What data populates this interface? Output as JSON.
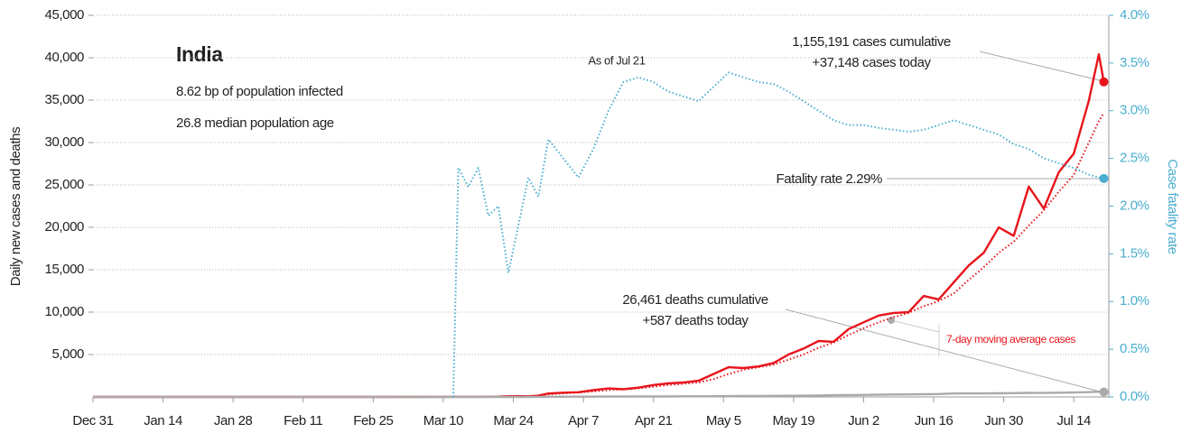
{
  "chart_data": {
    "type": "line",
    "title": "India",
    "subtitle": [
      "8.62 bp of population infected",
      "26.8 median population age"
    ],
    "ylabel": "Daily new cases and deaths",
    "y2label": "Case fatality rate",
    "annotations": {
      "as_of": "As of Jul 21",
      "cases_cumulative": "1,155,191 cases cumulative",
      "cases_today": "+37,148 cases today",
      "fatality": "Fatality rate 2.29%",
      "deaths_cumulative": "26,461 deaths cumulative",
      "deaths_today": "+587 deaths today",
      "moving_average": "7-day moving average cases"
    },
    "x": [
      0,
      30,
      60,
      71,
      72,
      73,
      75,
      77,
      79,
      81,
      83,
      85,
      87,
      89,
      91,
      94,
      97,
      100,
      103,
      106,
      109,
      112,
      115,
      118,
      121,
      124,
      127,
      130,
      133,
      136,
      139,
      142,
      145,
      148,
      151,
      154,
      157,
      160,
      163,
      166,
      169,
      172,
      175,
      178,
      181,
      184,
      187,
      190,
      193,
      196,
      199,
      201,
      202
    ],
    "xlim": [
      0,
      203
    ],
    "xticks": [
      {
        "value": 0,
        "label": "Dec 31"
      },
      {
        "value": 14,
        "label": "Jan 14"
      },
      {
        "value": 28,
        "label": "Jan 28"
      },
      {
        "value": 42,
        "label": "Feb 11"
      },
      {
        "value": 56,
        "label": "Feb 25"
      },
      {
        "value": 70,
        "label": "Mar 10"
      },
      {
        "value": 84,
        "label": "Mar 24"
      },
      {
        "value": 98,
        "label": "Apr 7"
      },
      {
        "value": 112,
        "label": "Apr 21"
      },
      {
        "value": 126,
        "label": "May 5"
      },
      {
        "value": 140,
        "label": "May 19"
      },
      {
        "value": 154,
        "label": "Jun 2"
      },
      {
        "value": 168,
        "label": "Jun 16"
      },
      {
        "value": 182,
        "label": "Jun 30"
      },
      {
        "value": 196,
        "label": "Jul 14"
      }
    ],
    "ylim": [
      0,
      45000
    ],
    "yticks": [
      {
        "value": 5000,
        "label": "5,000"
      },
      {
        "value": 10000,
        "label": "10,000"
      },
      {
        "value": 15000,
        "label": "15,000"
      },
      {
        "value": 20000,
        "label": "20,000"
      },
      {
        "value": 25000,
        "label": "25,000"
      },
      {
        "value": 30000,
        "label": "30,000"
      },
      {
        "value": 35000,
        "label": "35,000"
      },
      {
        "value": 40000,
        "label": "40,000"
      },
      {
        "value": 45000,
        "label": "45,000"
      }
    ],
    "y2lim": [
      0,
      4
    ],
    "y2ticks": [
      {
        "value": 0,
        "label": "0.0%"
      },
      {
        "value": 0.5,
        "label": "0.5%"
      },
      {
        "value": 1,
        "label": "1.0%"
      },
      {
        "value": 1.5,
        "label": "1.5%"
      },
      {
        "value": 2,
        "label": "2.0%"
      },
      {
        "value": 2.5,
        "label": "2.5%"
      },
      {
        "value": 3,
        "label": "3.0%"
      },
      {
        "value": 3.5,
        "label": "3.5%"
      },
      {
        "value": 4,
        "label": "4.0%"
      }
    ],
    "grid": true,
    "series": [
      {
        "name": "Daily new cases",
        "color": "#e8141b",
        "style": "solid",
        "values": [
          0,
          0,
          0,
          10,
          20,
          10,
          15,
          10,
          20,
          30,
          80,
          100,
          70,
          150,
          400,
          500,
          550,
          800,
          1000,
          900,
          1100,
          1400,
          1600,
          1700,
          1900,
          2700,
          3500,
          3400,
          3600,
          4000,
          5000,
          5700,
          6600,
          6500,
          8000,
          8800,
          9600,
          9900,
          10000,
          11900,
          11500,
          13500,
          15500,
          17000,
          20000,
          19000,
          24800,
          22200,
          26500,
          28700,
          34900,
          40400,
          37148
        ]
      },
      {
        "name": "7-day moving average cases",
        "color": "#e8141b",
        "style": "dotted",
        "values": [
          0,
          0,
          0,
          5,
          10,
          10,
          12,
          14,
          16,
          20,
          40,
          60,
          80,
          110,
          300,
          430,
          520,
          650,
          800,
          900,
          1000,
          1200,
          1400,
          1550,
          1700,
          2100,
          2700,
          3200,
          3500,
          3800,
          4400,
          5000,
          5800,
          6400,
          7300,
          8100,
          8800,
          9400,
          9900,
          10700,
          11300,
          12200,
          13800,
          15300,
          17000,
          18300,
          20200,
          22000,
          24200,
          26200,
          30000,
          32500,
          33500
        ]
      },
      {
        "name": "Daily new deaths",
        "color": "#aaaaaa",
        "style": "solid",
        "values": [
          0,
          0,
          0,
          0,
          0,
          0,
          0,
          0,
          0,
          1,
          3,
          4,
          5,
          10,
          20,
          25,
          30,
          35,
          40,
          45,
          50,
          50,
          55,
          70,
          75,
          90,
          100,
          110,
          120,
          130,
          140,
          150,
          175,
          200,
          220,
          230,
          270,
          290,
          300,
          320,
          340,
          400,
          420,
          410,
          430,
          450,
          480,
          470,
          500,
          520,
          560,
          620,
          587
        ]
      },
      {
        "name": "Case fatality rate",
        "color": "#4aaed0",
        "style": "dotted",
        "axis": "y2",
        "values": [
          null,
          null,
          null,
          null,
          0,
          2.4,
          2.2,
          2.4,
          1.9,
          2.0,
          1.3,
          1.8,
          2.3,
          2.1,
          2.7,
          2.5,
          2.3,
          2.6,
          3.0,
          3.3,
          3.35,
          3.3,
          3.2,
          3.15,
          3.1,
          3.25,
          3.4,
          3.35,
          3.3,
          3.28,
          3.2,
          3.1,
          3.0,
          2.9,
          2.85,
          2.85,
          2.82,
          2.8,
          2.78,
          2.8,
          2.85,
          2.9,
          2.85,
          2.8,
          2.75,
          2.65,
          2.6,
          2.5,
          2.45,
          2.4,
          2.33,
          2.3,
          2.29
        ]
      }
    ]
  }
}
